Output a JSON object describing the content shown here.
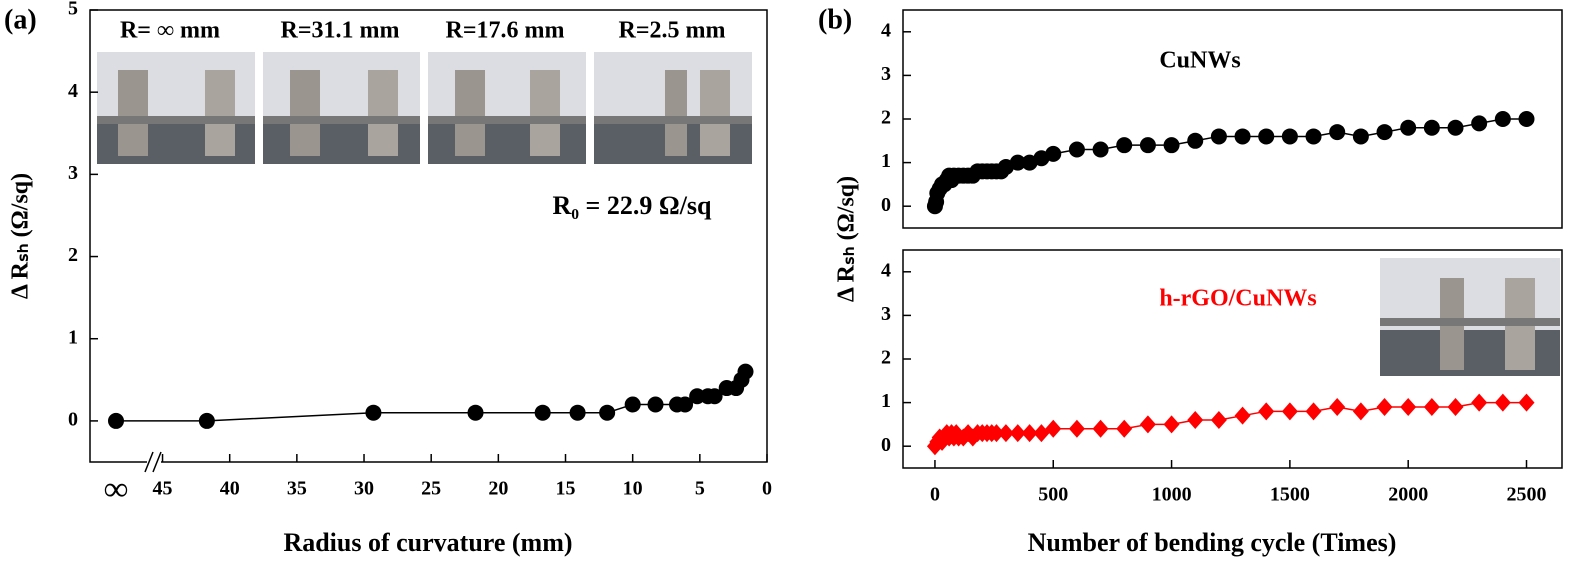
{
  "chart_data": [
    {
      "type": "line",
      "panel_label": "(a)",
      "xlabel": "Radius of curvature (mm)",
      "ylabel": "Δ Rₛₕ (Ω/sq)",
      "annotations": [
        "R= ∞ mm",
        "R=31.1 mm",
        "R=17.6 mm",
        "R=2.5 mm",
        "R₀ = 22.9 Ω/sq"
      ],
      "x": [
        "∞",
        41.7,
        29.3,
        21.7,
        16.7,
        14.1,
        11.9,
        10,
        8.3,
        6.7,
        6.1,
        5.2,
        4.4,
        3.9,
        3.0,
        2.3,
        1.9,
        1.6
      ],
      "series": [
        {
          "color": "#000000",
          "marker": "circle",
          "values": [
            0,
            0,
            0.1,
            0.1,
            0.1,
            0.1,
            0.1,
            0.2,
            0.2,
            0.2,
            0.2,
            0.3,
            0.3,
            0.3,
            0.4,
            0.4,
            0.5,
            0.6
          ]
        }
      ],
      "xlim": [
        50.4,
        0
      ],
      "xticks": [
        45,
        40,
        35,
        30,
        25,
        20,
        15,
        10,
        5,
        0
      ],
      "ylim": [
        -0.5,
        5
      ],
      "yticks": [
        0,
        1,
        2,
        3,
        4,
        5
      ]
    },
    {
      "type": "line",
      "panel_label": "(b)",
      "ylabel": "Δ Rₛₕ (Ω/sq)",
      "x": [
        0,
        5,
        10,
        20,
        30,
        40,
        50,
        60,
        70,
        80,
        100,
        120,
        140,
        160,
        180,
        200,
        220,
        240,
        260,
        280,
        300,
        350,
        400,
        450,
        500,
        600,
        700,
        800,
        900,
        1000,
        1100,
        1200,
        1300,
        1400,
        1500,
        1600,
        1700,
        1800,
        1900,
        2000,
        2100,
        2200,
        2300,
        2400,
        2500
      ],
      "series": [
        {
          "name": "CuNWs",
          "color": "#000000",
          "marker": "circle",
          "values": [
            0,
            0.1,
            0.3,
            0.4,
            0.5,
            0.5,
            0.6,
            0.7,
            0.6,
            0.7,
            0.7,
            0.7,
            0.7,
            0.7,
            0.8,
            0.8,
            0.8,
            0.8,
            0.8,
            0.8,
            0.9,
            1.0,
            1.0,
            1.1,
            1.2,
            1.3,
            1.3,
            1.4,
            1.4,
            1.4,
            1.5,
            1.6,
            1.6,
            1.6,
            1.6,
            1.6,
            1.7,
            1.6,
            1.7,
            1.8,
            1.8,
            1.8,
            1.9,
            2.0,
            2.0
          ]
        }
      ],
      "xlim": [
        -135,
        2650
      ],
      "ylim": [
        -0.5,
        4.5
      ],
      "yticks": [
        0,
        1,
        2,
        3,
        4
      ]
    },
    {
      "type": "line",
      "xlabel": "Number of bending cycle (Times)",
      "x": [
        0,
        10,
        20,
        30,
        40,
        50,
        60,
        70,
        80,
        90,
        100,
        120,
        140,
        160,
        180,
        200,
        220,
        240,
        260,
        300,
        350,
        400,
        450,
        500,
        600,
        700,
        800,
        900,
        1000,
        1100,
        1200,
        1300,
        1400,
        1500,
        1600,
        1700,
        1800,
        1900,
        2000,
        2100,
        2200,
        2300,
        2400,
        2500
      ],
      "series": [
        {
          "name": "h-rGO/CuNWs",
          "color": "#ff0000",
          "marker": "diamond",
          "values": [
            0,
            0.1,
            0.2,
            0.1,
            0.2,
            0.3,
            0.2,
            0.3,
            0.2,
            0.3,
            0.2,
            0.2,
            0.3,
            0.2,
            0.3,
            0.3,
            0.3,
            0.3,
            0.3,
            0.3,
            0.3,
            0.3,
            0.3,
            0.4,
            0.4,
            0.4,
            0.4,
            0.5,
            0.5,
            0.6,
            0.6,
            0.7,
            0.8,
            0.8,
            0.8,
            0.9,
            0.8,
            0.9,
            0.9,
            0.9,
            0.9,
            1.0,
            1.0,
            1.0
          ]
        }
      ],
      "xlim": [
        -135,
        2650
      ],
      "xticks": [
        0,
        500,
        1000,
        1500,
        2000,
        2500
      ],
      "ylim": [
        -0.5,
        4.5
      ],
      "yticks": [
        0,
        1,
        2,
        3,
        4
      ]
    }
  ]
}
